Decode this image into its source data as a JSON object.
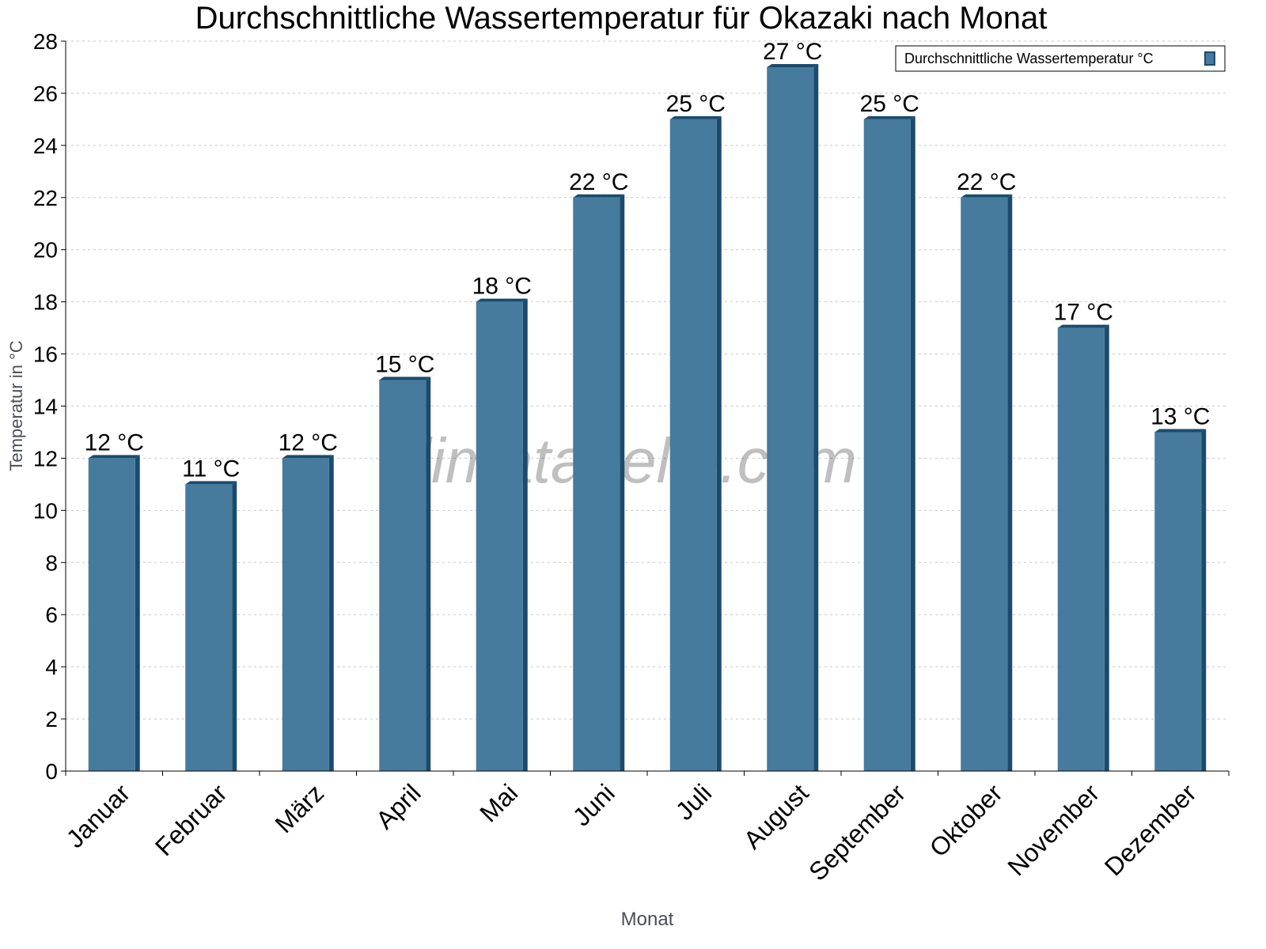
{
  "chart_data": {
    "type": "bar",
    "title": "Durchschnittliche Wassertemperatur für Okazaki nach Monat",
    "xlabel": "Monat",
    "ylabel": "Temperatur in °C",
    "ylim": [
      0,
      28
    ],
    "yticks": [
      0,
      2,
      4,
      6,
      8,
      10,
      12,
      14,
      16,
      18,
      20,
      22,
      24,
      26,
      28
    ],
    "grid": true,
    "legend_placement": "top-right",
    "categories": [
      "Januar",
      "Februar",
      "März",
      "April",
      "Mai",
      "Juni",
      "Juli",
      "August",
      "September",
      "Oktober",
      "November",
      "Dezember"
    ],
    "series": [
      {
        "name": "Durchschnittliche Wassertemperatur °C",
        "values": [
          12,
          11,
          12,
          15,
          18,
          22,
          25,
          27,
          25,
          22,
          17,
          13
        ],
        "data_labels": [
          "12 °C",
          "11 °C",
          "12 °C",
          "15 °C",
          "18 °C",
          "22 °C",
          "25 °C",
          "27 °C",
          "25 °C",
          "22 °C",
          "17 °C",
          "13 °C"
        ],
        "color": "#467b9e",
        "side_color": "#1b4b6c"
      }
    ],
    "watermark": "klimatabelle.com"
  }
}
